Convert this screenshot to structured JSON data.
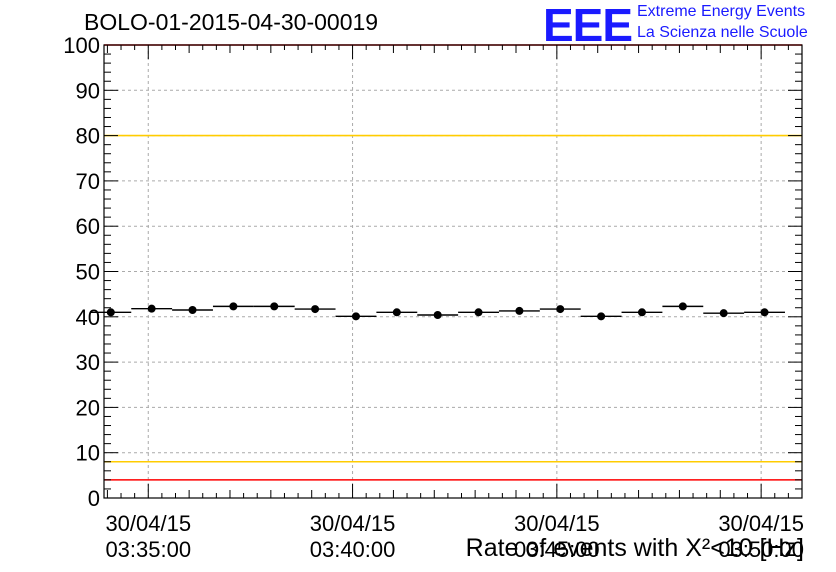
{
  "header": {
    "run_title": "BOLO-01-2015-04-30-00019",
    "logo_text": "EEE",
    "logo_line1": "Extreme Energy Events",
    "logo_line2": "La Scienza nelle Scuole"
  },
  "colors": {
    "red_limit": "#ff0000",
    "yellow_limit": "#ffcc00",
    "logo": "#1a1aff",
    "markers": "#000000"
  },
  "chart_data": {
    "type": "scatter",
    "title": "BOLO-01-2015-04-30-00019",
    "xlabel": "Rate of events with X²<10 [Hz]",
    "ylabel": "",
    "ylim": [
      0,
      100
    ],
    "yticks": [
      0,
      10,
      20,
      30,
      40,
      50,
      60,
      70,
      80,
      90,
      100
    ],
    "grid": true,
    "xlim": [
      "2015-04-30 03:33:55",
      "2015-04-30 03:51:00"
    ],
    "xtick_labels": [
      {
        "date": "30/04/15",
        "time": "03:35:00",
        "x": "2015-04-30 03:35:00"
      },
      {
        "date": "30/04/15",
        "time": "03:40:00",
        "x": "2015-04-30 03:40:00"
      },
      {
        "date": "30/04/15",
        "time": "03:45:00",
        "x": "2015-04-30 03:45:00"
      },
      {
        "date": "30/04/15",
        "time": "03:50:00",
        "x": "2015-04-30 03:50:00"
      }
    ],
    "reference_lines": [
      {
        "y": 100,
        "color": "#ff0000"
      },
      {
        "y": 80,
        "color": "#ffcc00"
      },
      {
        "y": 8,
        "color": "#ffcc00"
      },
      {
        "y": 4,
        "color": "#ff0000"
      }
    ],
    "bin_width_seconds": 60,
    "series": [
      {
        "x": [
          "2015-04-30 03:34:05",
          "2015-04-30 03:35:05",
          "2015-04-30 03:36:05",
          "2015-04-30 03:37:05",
          "2015-04-30 03:38:05",
          "2015-04-30 03:39:05",
          "2015-04-30 03:40:05",
          "2015-04-30 03:41:05",
          "2015-04-30 03:42:05",
          "2015-04-30 03:43:05",
          "2015-04-30 03:44:05",
          "2015-04-30 03:45:05",
          "2015-04-30 03:46:05",
          "2015-04-30 03:47:05",
          "2015-04-30 03:48:05",
          "2015-04-30 03:49:05",
          "2015-04-30 03:50:05"
        ],
        "values": [
          41.0,
          41.8,
          41.5,
          42.3,
          42.3,
          41.7,
          40.1,
          41.0,
          40.4,
          41.0,
          41.3,
          41.7,
          40.1,
          41.0,
          42.3,
          40.8,
          41.0
        ]
      }
    ]
  }
}
